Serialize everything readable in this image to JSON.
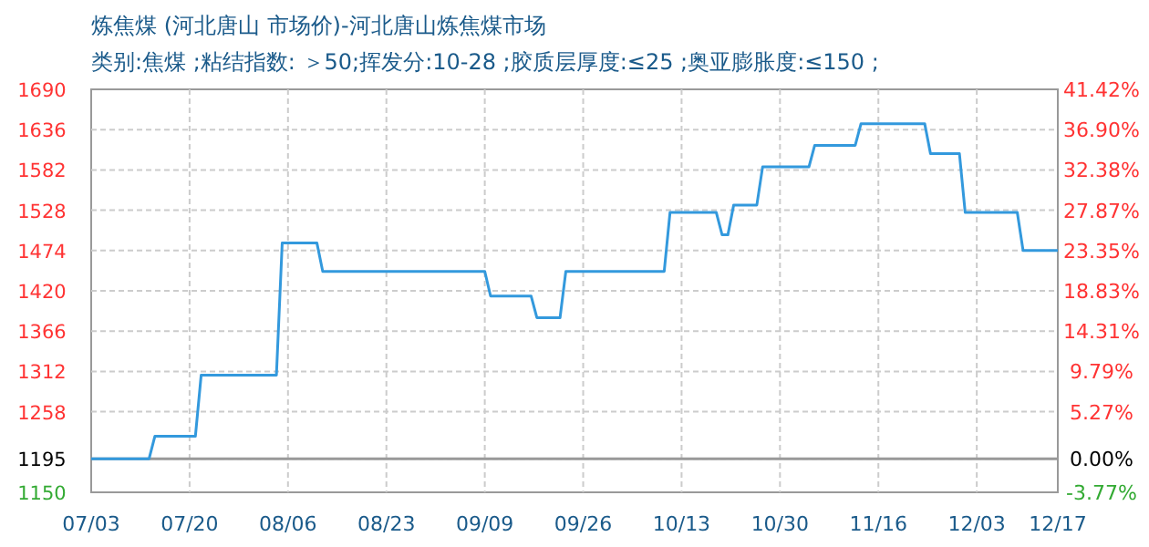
{
  "chart_data": {
    "type": "line",
    "title": "炼焦煤 (河北唐山 市场价)-河北唐山炼焦煤市场",
    "subtitle": "类别:焦煤 ;粘结指数: ＞50;挥发分:10-28 ;胶质层厚度:≤25 ;奥亚膨胀度:≤150 ;",
    "x": [
      "--07-03",
      "--07-13",
      "--07-14",
      "--07-21",
      "--07-22",
      "--08-04",
      "--08-05",
      "--08-11",
      "--08-12",
      "--09-09",
      "--09-10",
      "--09-17",
      "--09-18",
      "--09-22",
      "--09-23",
      "--10-10",
      "--10-11",
      "--10-19",
      "--10-20",
      "--10-21",
      "--10-22",
      "--10-26",
      "--10-27",
      "--11-04",
      "--11-05",
      "--11-12",
      "--11-13",
      "--11-24",
      "--11-25",
      "--11-30",
      "--12-01",
      "--12-10",
      "--12-11",
      "--12-17"
    ],
    "values": [
      1195,
      1195,
      1225,
      1225,
      1307,
      1307,
      1484,
      1484,
      1446,
      1446,
      1413,
      1413,
      1384,
      1384,
      1446,
      1446,
      1525,
      1525,
      1495,
      1495,
      1535,
      1535,
      1586,
      1586,
      1615,
      1615,
      1644,
      1644,
      1604,
      1604,
      1525,
      1525,
      1474,
      1474
    ],
    "color": "#3399dd",
    "marker": "none",
    "line_style": "solid",
    "grid": true,
    "xlim": [
      "--07-03",
      "--12-17"
    ],
    "xticks": [
      {
        "value": "--07-03",
        "label": "07/03"
      },
      {
        "value": "--07-20",
        "label": "07/20"
      },
      {
        "value": "--08-06",
        "label": "08/06"
      },
      {
        "value": "--08-23",
        "label": "08/23"
      },
      {
        "value": "--09-09",
        "label": "09/09"
      },
      {
        "value": "--09-26",
        "label": "09/26"
      },
      {
        "value": "--10-13",
        "label": "10/13"
      },
      {
        "value": "--10-30",
        "label": "10/30"
      },
      {
        "value": "--11-16",
        "label": "11/16"
      },
      {
        "value": "--12-03",
        "label": "12/03"
      },
      {
        "value": "--12-17",
        "label": "12/17"
      }
    ],
    "ylim": [
      1150,
      1690
    ],
    "yticks": [
      1150,
      1195,
      1258,
      1312,
      1366,
      1420,
      1474,
      1528,
      1582,
      1636,
      1690
    ],
    "y2lim": [
      -3.77,
      41.42
    ],
    "y2ticks": [
      {
        "value": -3.77,
        "label": "-3.77%"
      },
      {
        "value": 0,
        "label": "0.00%"
      },
      {
        "value": 5.27,
        "label": "5.27%"
      },
      {
        "value": 9.79,
        "label": "9.79%"
      },
      {
        "value": 14.31,
        "label": "14.31%"
      },
      {
        "value": 18.83,
        "label": "18.83%"
      },
      {
        "value": 23.35,
        "label": "23.35%"
      },
      {
        "value": 27.87,
        "label": "27.87%"
      },
      {
        "value": 32.38,
        "label": "32.38%"
      },
      {
        "value": 36.9,
        "label": "36.90%"
      },
      {
        "value": 41.42,
        "label": "41.42%"
      }
    ],
    "ref_lines": [
      {
        "axis": "y",
        "value": 1195,
        "color": "#999999",
        "line_style": "solid"
      }
    ]
  }
}
